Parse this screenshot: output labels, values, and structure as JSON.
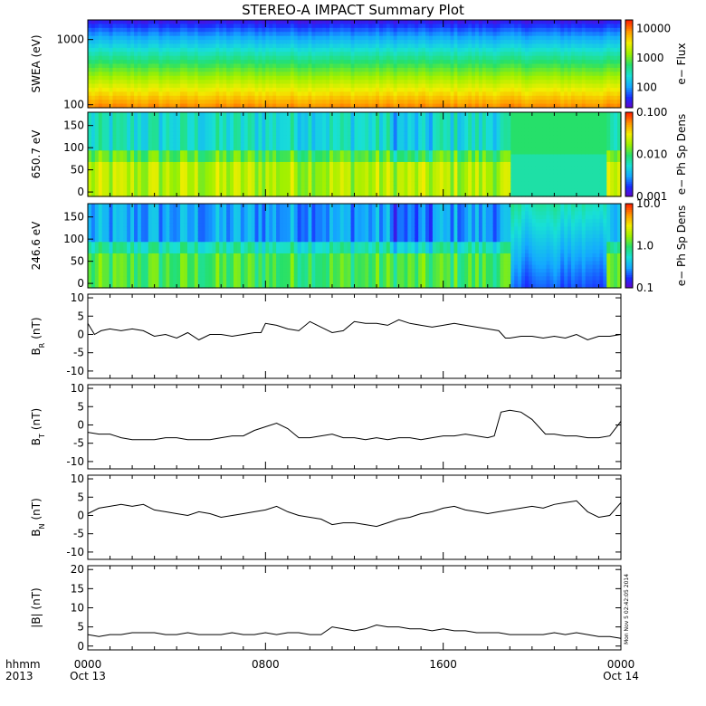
{
  "title": "STEREO-A IMPACT Summary Plot",
  "colors": {
    "line": "#000000",
    "frame": "#000000",
    "background": "#ffffff"
  },
  "colormap": [
    "#6a00c8",
    "#1a2cff",
    "#14a8ff",
    "#18e0d6",
    "#26e06a",
    "#9cf000",
    "#f2ee00",
    "#ff9a00",
    "#ff2600"
  ],
  "stamp": "Mon Nov  5 02:42:05 2014",
  "x_axis": {
    "left_labels": [
      "hhmm",
      "2013"
    ],
    "ticks": [
      {
        "hours": 0,
        "label": "0000",
        "sub": "Oct 13"
      },
      {
        "hours": 8,
        "label": "0800",
        "sub": ""
      },
      {
        "hours": 16,
        "label": "1600",
        "sub": ""
      },
      {
        "hours": 24,
        "label": "0000",
        "sub": "Oct 14"
      }
    ]
  },
  "chart_data": [
    {
      "type": "heatmap",
      "ylabel": "SWEA (eV)",
      "yscale": "log",
      "ylim": [
        90,
        2000
      ],
      "yticks": [
        {
          "v": 100,
          "label": "100"
        },
        {
          "v": 1000,
          "label": "1000"
        }
      ],
      "colorbar": {
        "label": "e− Flux",
        "scale": "log",
        "range": [
          20,
          20000
        ],
        "ticks": [
          {
            "v": 100,
            "label": "100"
          },
          {
            "v": 1000,
            "label": "1000"
          },
          {
            "v": 10000,
            "label": "10000"
          }
        ]
      },
      "description_levels": {
        "low_energy": 0.82,
        "mid_energy": 0.5,
        "high_energy": 0.08
      }
    },
    {
      "type": "heatmap",
      "ylabel": "650.7 eV",
      "ylim": [
        -10,
        180
      ],
      "yticks": [
        {
          "v": 0,
          "label": "0"
        },
        {
          "v": 50,
          "label": "50"
        },
        {
          "v": 100,
          "label": "100"
        },
        {
          "v": 150,
          "label": "150"
        }
      ],
      "colorbar": {
        "label": "e− Ph Sp Dens",
        "scale": "log",
        "range": [
          0.001,
          0.1
        ],
        "ticks": [
          {
            "v": 0.001,
            "label": "0.001"
          },
          {
            "v": 0.01,
            "label": "0.010"
          },
          {
            "v": 0.1,
            "label": "0.100"
          }
        ]
      }
    },
    {
      "type": "heatmap",
      "ylabel": "246.6 eV",
      "ylim": [
        -10,
        180
      ],
      "yticks": [
        {
          "v": 0,
          "label": "0"
        },
        {
          "v": 50,
          "label": "50"
        },
        {
          "v": 100,
          "label": "100"
        },
        {
          "v": 150,
          "label": "150"
        }
      ],
      "colorbar": {
        "label": "e− Ph Sp Dens",
        "scale": "log",
        "range": [
          0.1,
          10
        ],
        "ticks": [
          {
            "v": 0.1,
            "label": "0.1"
          },
          {
            "v": 1,
            "label": "1.0"
          },
          {
            "v": 10,
            "label": "10.0"
          }
        ]
      }
    },
    {
      "type": "line",
      "ylabel": "B",
      "ylabel_sub": "R",
      "ylabel_unit": "(nT)",
      "ylim": [
        -12,
        11
      ],
      "yticks": [
        -10,
        -5,
        0,
        5,
        10
      ],
      "x": [
        0,
        0.3,
        0.6,
        1,
        1.5,
        2,
        2.5,
        3,
        3.5,
        4,
        4.5,
        5,
        5.5,
        6,
        6.5,
        7,
        7.5,
        7.8,
        8,
        8.5,
        9,
        9.5,
        10,
        10.5,
        11,
        11.5,
        12,
        12.5,
        13,
        13.5,
        14,
        14.5,
        15,
        15.5,
        16,
        16.5,
        17,
        17.5,
        18,
        18.5,
        18.8,
        19,
        19.5,
        20,
        20.5,
        21,
        21.5,
        22,
        22.5,
        23,
        23.5,
        24
      ],
      "y": [
        3,
        0,
        1,
        1.5,
        1,
        1.5,
        1,
        -0.5,
        0,
        -1,
        0.5,
        -1.5,
        0,
        0,
        -0.5,
        0,
        0.5,
        0.5,
        3,
        2.5,
        1.5,
        1,
        3.5,
        2,
        0.5,
        1,
        3.5,
        3,
        3,
        2.5,
        4,
        3,
        2.5,
        2,
        2.5,
        3,
        2.5,
        2,
        1.5,
        1,
        -1,
        -1,
        -0.5,
        -0.5,
        -1,
        -0.5,
        -1,
        0,
        -1.5,
        -0.5,
        -0.5,
        0
      ]
    },
    {
      "type": "line",
      "ylabel": "B",
      "ylabel_sub": "T",
      "ylabel_unit": "(nT)",
      "ylim": [
        -12,
        11
      ],
      "yticks": [
        -10,
        -5,
        0,
        5,
        10
      ],
      "x": [
        0,
        0.5,
        1,
        1.5,
        2,
        2.5,
        3,
        3.5,
        4,
        4.5,
        5,
        5.5,
        6,
        6.5,
        7,
        7.5,
        8,
        8.5,
        9,
        9.5,
        10,
        10.5,
        11,
        11.5,
        12,
        12.5,
        13,
        13.5,
        14,
        14.5,
        15,
        15.5,
        16,
        16.5,
        17,
        17.5,
        18,
        18.3,
        18.6,
        19,
        19.5,
        20,
        20.3,
        20.6,
        21,
        21.5,
        22,
        22.5,
        23,
        23.5,
        24
      ],
      "y": [
        -2,
        -2.5,
        -2.5,
        -3.5,
        -4,
        -4,
        -4,
        -3.5,
        -3.5,
        -4,
        -4,
        -4,
        -3.5,
        -3,
        -3,
        -1.5,
        -0.5,
        0.5,
        -1,
        -3.5,
        -3.5,
        -3,
        -2.5,
        -3.5,
        -3.5,
        -4,
        -3.5,
        -4,
        -3.5,
        -3.5,
        -4,
        -3.5,
        -3,
        -3,
        -2.5,
        -3,
        -3.5,
        -3,
        3.5,
        4,
        3.5,
        1.5,
        -0.5,
        -2.5,
        -2.5,
        -3,
        -3,
        -3.5,
        -3.5,
        -3,
        1
      ]
    },
    {
      "type": "line",
      "ylabel": "B",
      "ylabel_sub": "N",
      "ylabel_unit": "(nT)",
      "ylim": [
        -12,
        11
      ],
      "yticks": [
        -10,
        -5,
        0,
        5,
        10
      ],
      "x": [
        0,
        0.5,
        1,
        1.5,
        2,
        2.5,
        3,
        3.5,
        4,
        4.5,
        5,
        5.5,
        6,
        6.5,
        7,
        7.5,
        8,
        8.5,
        9,
        9.5,
        10,
        10.5,
        11,
        11.5,
        12,
        12.5,
        13,
        13.5,
        14,
        14.5,
        15,
        15.5,
        16,
        16.5,
        17,
        17.5,
        18,
        18.5,
        19,
        19.5,
        20,
        20.5,
        21,
        21.5,
        22,
        22.5,
        23,
        23.5,
        24
      ],
      "y": [
        0.5,
        2,
        2.5,
        3,
        2.5,
        3,
        1.5,
        1,
        0.5,
        0,
        1,
        0.5,
        -0.5,
        0,
        0.5,
        1,
        1.5,
        2.5,
        1,
        0,
        -0.5,
        -1,
        -2.5,
        -2,
        -2,
        -2.5,
        -3,
        -2,
        -1,
        -0.5,
        0.5,
        1,
        2,
        2.5,
        1.5,
        1,
        0.5,
        1,
        1.5,
        2,
        2.5,
        2,
        3,
        3.5,
        4,
        1,
        -0.5,
        0,
        3.5
      ]
    },
    {
      "type": "line",
      "ylabel": "|B| (nT)",
      "ylim": [
        -1,
        21
      ],
      "yticks": [
        0,
        5,
        10,
        15,
        20
      ],
      "x": [
        0,
        0.5,
        1,
        1.5,
        2,
        2.5,
        3,
        3.5,
        4,
        4.5,
        5,
        5.5,
        6,
        6.5,
        7,
        7.5,
        8,
        8.5,
        9,
        9.5,
        10,
        10.5,
        11,
        11.5,
        12,
        12.5,
        13,
        13.5,
        14,
        14.5,
        15,
        15.5,
        16,
        16.5,
        17,
        17.5,
        18,
        18.5,
        19,
        19.5,
        20,
        20.5,
        21,
        21.5,
        22,
        22.5,
        23,
        23.5,
        24
      ],
      "y": [
        3,
        2.5,
        3,
        3,
        3.5,
        3.5,
        3.5,
        3,
        3,
        3.5,
        3,
        3,
        3,
        3.5,
        3,
        3,
        3.5,
        3,
        3.5,
        3.5,
        3,
        3,
        5,
        4.5,
        4,
        4.5,
        5.5,
        5,
        5,
        4.5,
        4.5,
        4,
        4.5,
        4,
        4,
        3.5,
        3.5,
        3.5,
        3,
        3,
        3,
        3,
        3.5,
        3,
        3.5,
        3,
        2.5,
        2.5,
        2
      ]
    }
  ]
}
